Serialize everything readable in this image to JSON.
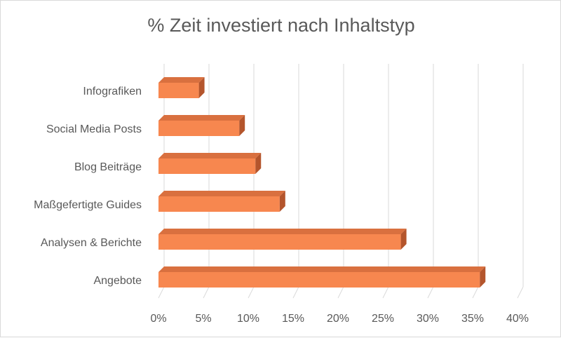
{
  "chart_data": {
    "type": "bar",
    "orientation": "horizontal",
    "title": "% Zeit investiert nach Inhaltstyp",
    "xlabel": "",
    "ylabel": "",
    "categories": [
      "Infografiken",
      "Social Media Posts",
      "Blog Beiträge",
      "Maßgefertigte Guides",
      "Analysen & Berichte",
      "Angebote"
    ],
    "values": [
      4.5,
      9,
      10.8,
      13.5,
      27,
      35.8
    ],
    "xlim": [
      0,
      40
    ],
    "x_ticks": [
      0,
      5,
      10,
      15,
      20,
      25,
      30,
      35,
      40
    ],
    "x_tick_labels": [
      "0%",
      "5%",
      "10%",
      "15%",
      "20%",
      "25%",
      "30%",
      "35%",
      "40%"
    ],
    "grid": true,
    "legend": "none",
    "style": "3d-bar",
    "colors": {
      "bar_front": "#f7874f",
      "bar_top": "#d9703f",
      "bar_side": "#b4552c",
      "grid": "#d9d9d9",
      "text": "#595959"
    }
  }
}
